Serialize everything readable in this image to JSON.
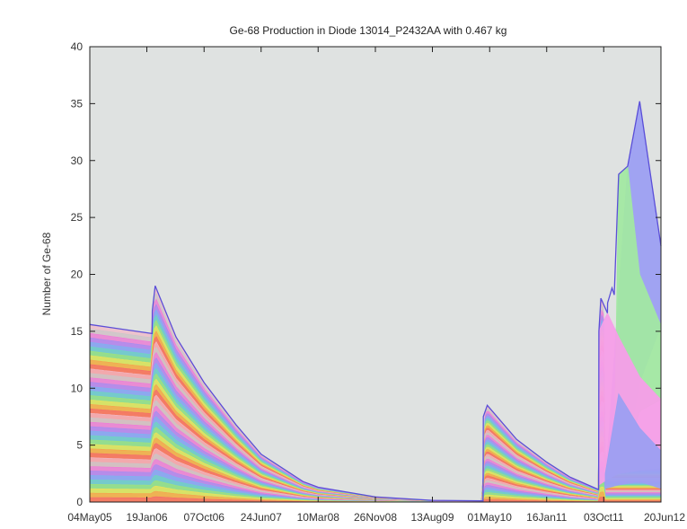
{
  "chart_data": {
    "type": "area",
    "title": "Ge-68 Production in Diode 13014_P2432AA with 0.467 kg",
    "xlabel": "",
    "ylabel": "Number of Ge-68",
    "ylim": [
      0,
      40
    ],
    "y_ticks": [
      0,
      5,
      10,
      15,
      20,
      25,
      30,
      35,
      40
    ],
    "x_ticks": [
      "04May05",
      "19Jan06",
      "07Oct06",
      "24Jun07",
      "10Mar08",
      "26Nov08",
      "13Aug09",
      "01May10",
      "16Jan11",
      "03Oct11",
      "20Jun12"
    ],
    "xlim": [
      "2005-05-04",
      "2012-06-20"
    ],
    "grid": false,
    "legend": "none",
    "total_series": {
      "x": [
        "2005-05-04",
        "2006-02-12",
        "2006-02-13",
        "2006-02-26",
        "2006-06-01",
        "2006-10-07",
        "2007-03-01",
        "2007-06-24",
        "2008-01-01",
        "2008-03-10",
        "2008-11-26",
        "2009-08-13",
        "2010-04-01",
        "2010-04-02",
        "2010-04-20",
        "2010-09-01",
        "2011-01-16",
        "2011-05-01",
        "2011-09-10",
        "2011-09-11",
        "2011-09-20",
        "2011-10-20",
        "2011-10-21",
        "2011-11-10",
        "2011-11-20",
        "2011-12-10",
        "2012-01-20",
        "2012-03-15",
        "2012-06-20"
      ],
      "values": [
        15.6,
        14.8,
        16.8,
        19.0,
        14.5,
        10.5,
        6.8,
        4.2,
        1.8,
        1.3,
        0.45,
        0.15,
        0.1,
        7.5,
        8.5,
        5.5,
        3.5,
        2.2,
        1.1,
        15.0,
        17.9,
        16.6,
        17.5,
        18.8,
        18.2,
        28.8,
        29.5,
        35.2,
        22.5
      ]
    },
    "dominant_bands": [
      {
        "color": "#9c9ff2",
        "x": [
          "2011-10-10",
          "2012-01-20",
          "2012-03-15",
          "2012-06-20"
        ],
        "lower": [
          1.5,
          4.5,
          10.5,
          15.5
        ],
        "upper": [
          1.5,
          29.5,
          35.2,
          22.5
        ]
      },
      {
        "color": "#a2e8a2",
        "x": [
          "2011-11-20",
          "2011-12-10",
          "2012-01-20",
          "2012-03-15",
          "2012-06-20"
        ],
        "lower": [
          3.5,
          4.0,
          4.5,
          8.0,
          9.0
        ],
        "upper": [
          3.5,
          28.8,
          29.5,
          20.0,
          15.5
        ]
      },
      {
        "color": "#f59ee8",
        "x": [
          "2011-09-11",
          "2011-10-20",
          "2011-12-10",
          "2012-03-15",
          "2012-06-20"
        ],
        "lower": [
          1.5,
          2.0,
          2.5,
          2.8,
          3.0
        ],
        "upper": [
          15.0,
          16.6,
          14.5,
          11.0,
          9.0
        ]
      },
      {
        "color": "#9c9ff2",
        "x": [
          "2011-10-10",
          "2011-12-10",
          "2012-03-15",
          "2012-06-20"
        ],
        "lower": [
          1.2,
          1.5,
          1.8,
          1.2
        ],
        "upper": [
          2.5,
          9.5,
          6.5,
          4.5
        ]
      }
    ],
    "band_palette": [
      "#f56a6a",
      "#f6a24e",
      "#eee35a",
      "#9fe37a",
      "#6ed6c0",
      "#7fb2f0",
      "#a58cf0",
      "#f07ad8",
      "#c8c8c8",
      "#f2b8c6"
    ]
  }
}
